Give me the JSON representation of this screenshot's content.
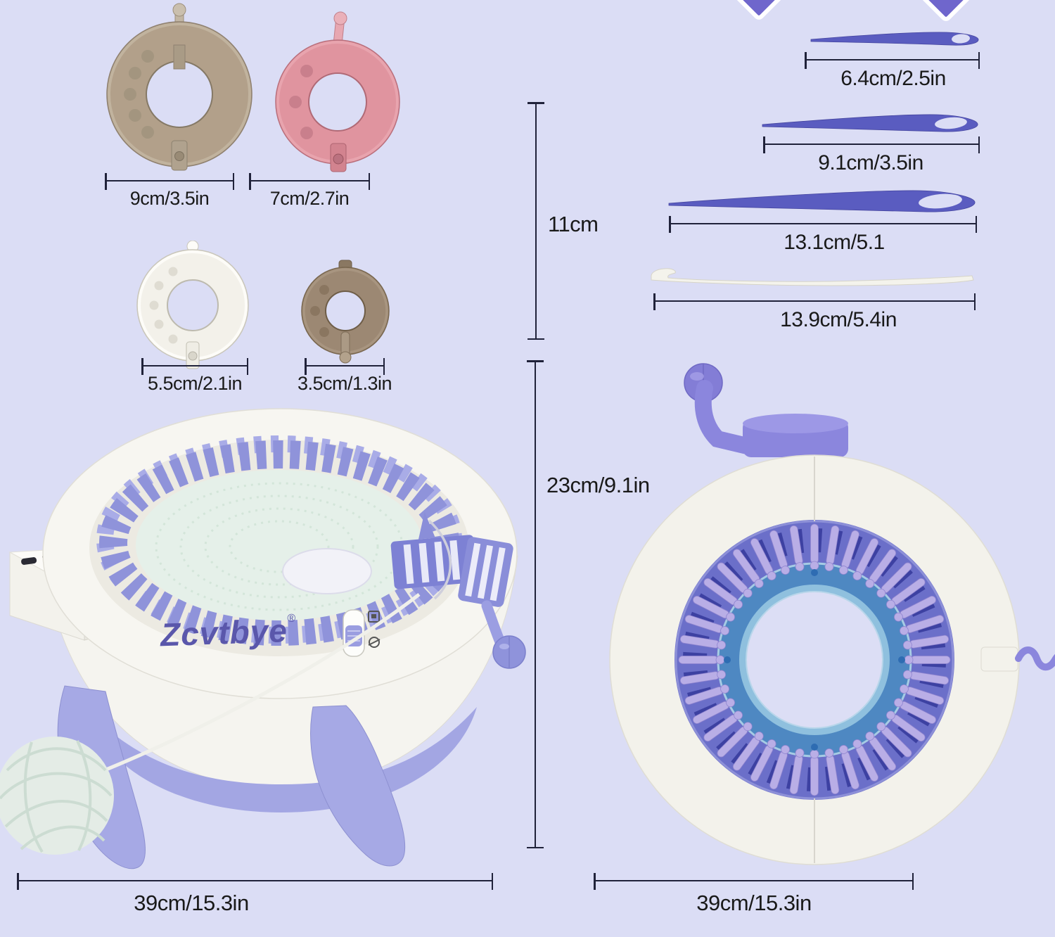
{
  "page": {
    "background": "#dbddf5"
  },
  "brand": {
    "name": "Zcvtbye",
    "mark": "®"
  },
  "pom_pom_makers": {
    "large": {
      "label": "9cm/3.5in"
    },
    "medium": {
      "label": "7cm/2.7in"
    },
    "small": {
      "label": "5.5cm/2.1in"
    },
    "mini": {
      "label": "3.5cm/1.3in"
    }
  },
  "accessories": {
    "needle_small": {
      "label": "6.4cm/2.5in"
    },
    "needle_medium": {
      "label": "9.1cm/3.5in"
    },
    "needle_large": {
      "label": "13.1cm/5.1"
    },
    "crochet_hook": {
      "label": "13.9cm/5.4in"
    }
  },
  "measurements": {
    "accessories_height": "11cm",
    "machine_height": "23cm/9.1in",
    "machine_width": "39cm/15.3in",
    "top_view_diameter": "39cm/15.3in"
  },
  "colors": {
    "background": "#dbddf5",
    "dimension_line": "#20223a",
    "brand_purple": "#5a57ab",
    "needle_purple": "#5a5cc0",
    "machine_purple": "#a3a6e3",
    "machine_white": "#f6f5f0",
    "fabric_mint": "#e5f0e9",
    "disc_tan": "#b2a08a",
    "disc_pink": "#e0949f",
    "disc_white": "#f3f1ea",
    "disc_brown": "#9c8873"
  }
}
